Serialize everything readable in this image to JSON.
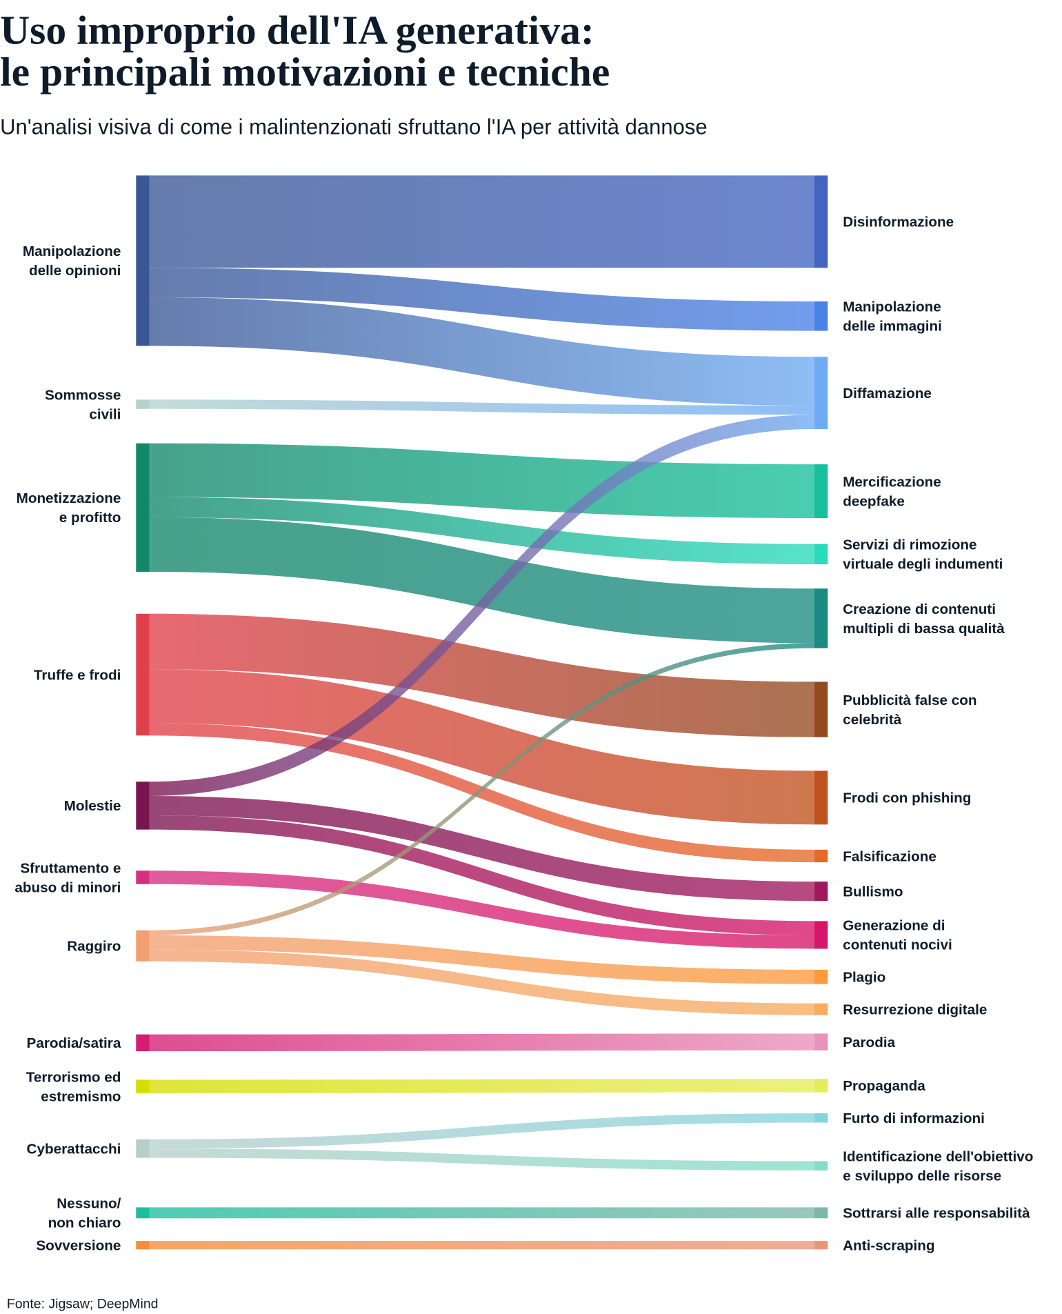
{
  "title": [
    "Uso improprio dell'IA generativa:",
    "le principali motivazioni e tecniche"
  ],
  "subtitle": "Un'analisi visiva di come i malintenzionati sfruttano l'IA per attività dannose",
  "source": "Fonte: Jigsaw; DeepMind",
  "chart_data": {
    "type": "sankey",
    "note_units": "relative flow magnitude (band thickness)",
    "sources": [
      {
        "label": [
          "Manipolazione",
          "delle opinioni"
        ],
        "color": "#3a5795"
      },
      {
        "label": [
          "Sommosse",
          "civili"
        ],
        "color": "#b4d2ce"
      },
      {
        "label": [
          "Monetizzazione",
          "e profitto"
        ],
        "color": "#13876a"
      },
      {
        "label": [
          "Truffe e frodi"
        ],
        "color": "#e0404a"
      },
      {
        "label": [
          "Molestie"
        ],
        "color": "#7a1450"
      },
      {
        "label": [
          "Sfruttamento e",
          "abuso di minori"
        ],
        "color": "#d62f80"
      },
      {
        "label": [
          "Raggiro"
        ],
        "color": "#f2a072"
      },
      {
        "label": [
          "Parodia/satira"
        ],
        "color": "#d41c70"
      },
      {
        "label": [
          "Terrorismo ed",
          "estremismo"
        ],
        "color": "#d4df00"
      },
      {
        "label": [
          "Cyberattacchi"
        ],
        "color": "#b6cfcb"
      },
      {
        "label": [
          "Nessuno/",
          "non chiaro"
        ],
        "color": "#1dbf9c"
      },
      {
        "label": [
          "Sovversione"
        ],
        "color": "#f28d3c"
      }
    ],
    "targets": [
      {
        "label": [
          "Disinformazione"
        ],
        "color": "#4465c2"
      },
      {
        "label": [
          "Manipolazione",
          "delle immagini"
        ],
        "color": "#4a82e8"
      },
      {
        "label": [
          "Diffamazione"
        ],
        "color": "#6eabf2"
      },
      {
        "label": [
          "Mercificazione",
          "deepfake"
        ],
        "color": "#17c09a"
      },
      {
        "label": [
          "Servizi di rimozione",
          "virtuale degli indumenti"
        ],
        "color": "#28dbbb"
      },
      {
        "label": [
          "Creazione di contenuti",
          "multipli di bassa qualità"
        ],
        "color": "#1a8a82"
      },
      {
        "label": [
          "Pubblicità false con",
          "celebrità"
        ],
        "color": "#944a20"
      },
      {
        "label": [
          "Frodi con phishing"
        ],
        "color": "#c0521e"
      },
      {
        "label": [
          "Falsificazione"
        ],
        "color": "#e46a26"
      },
      {
        "label": [
          "Bullismo"
        ],
        "color": "#a0185e"
      },
      {
        "label": [
          "Generazione di",
          "contenuti nocivi"
        ],
        "color": "#d81668"
      },
      {
        "label": [
          "Plagio"
        ],
        "color": "#fb9a3c"
      },
      {
        "label": [
          "Resurrezione digitale"
        ],
        "color": "#f8ab5e"
      },
      {
        "label": [
          "Parodia"
        ],
        "color": "#e891bb"
      },
      {
        "label": [
          "Propaganda"
        ],
        "color": "#e5ec5a"
      },
      {
        "label": [
          "Furto di informazioni"
        ],
        "color": "#86d2dc"
      },
      {
        "label": [
          "Identificazione dell'obiettivo",
          "e sviluppo delle risorse"
        ],
        "color": "#84dcc6"
      },
      {
        "label": [
          "Sottrarsi alle responsabilità"
        ],
        "color": "#7fb6aa"
      },
      {
        "label": [
          "Anti-scraping"
        ],
        "color": "#e9957a"
      }
    ],
    "links": [
      {
        "source": 0,
        "target": 0,
        "value": 110
      },
      {
        "source": 0,
        "target": 1,
        "value": 35
      },
      {
        "source": 0,
        "target": 2,
        "value": 58
      },
      {
        "source": 1,
        "target": 2,
        "value": 11
      },
      {
        "source": 2,
        "target": 3,
        "value": 64
      },
      {
        "source": 2,
        "target": 4,
        "value": 24
      },
      {
        "source": 2,
        "target": 5,
        "value": 65
      },
      {
        "source": 3,
        "target": 6,
        "value": 66
      },
      {
        "source": 3,
        "target": 7,
        "value": 64
      },
      {
        "source": 3,
        "target": 8,
        "value": 15
      },
      {
        "source": 4,
        "target": 2,
        "value": 17
      },
      {
        "source": 4,
        "target": 9,
        "value": 23
      },
      {
        "source": 4,
        "target": 10,
        "value": 17
      },
      {
        "source": 5,
        "target": 10,
        "value": 16
      },
      {
        "source": 6,
        "target": 5,
        "value": 6
      },
      {
        "source": 6,
        "target": 11,
        "value": 17
      },
      {
        "source": 6,
        "target": 12,
        "value": 14
      },
      {
        "source": 7,
        "target": 13,
        "value": 20
      },
      {
        "source": 8,
        "target": 14,
        "value": 16
      },
      {
        "source": 9,
        "target": 15,
        "value": 11
      },
      {
        "source": 9,
        "target": 16,
        "value": 11
      },
      {
        "source": 10,
        "target": 17,
        "value": 13
      },
      {
        "source": 11,
        "target": 18,
        "value": 10
      }
    ]
  }
}
